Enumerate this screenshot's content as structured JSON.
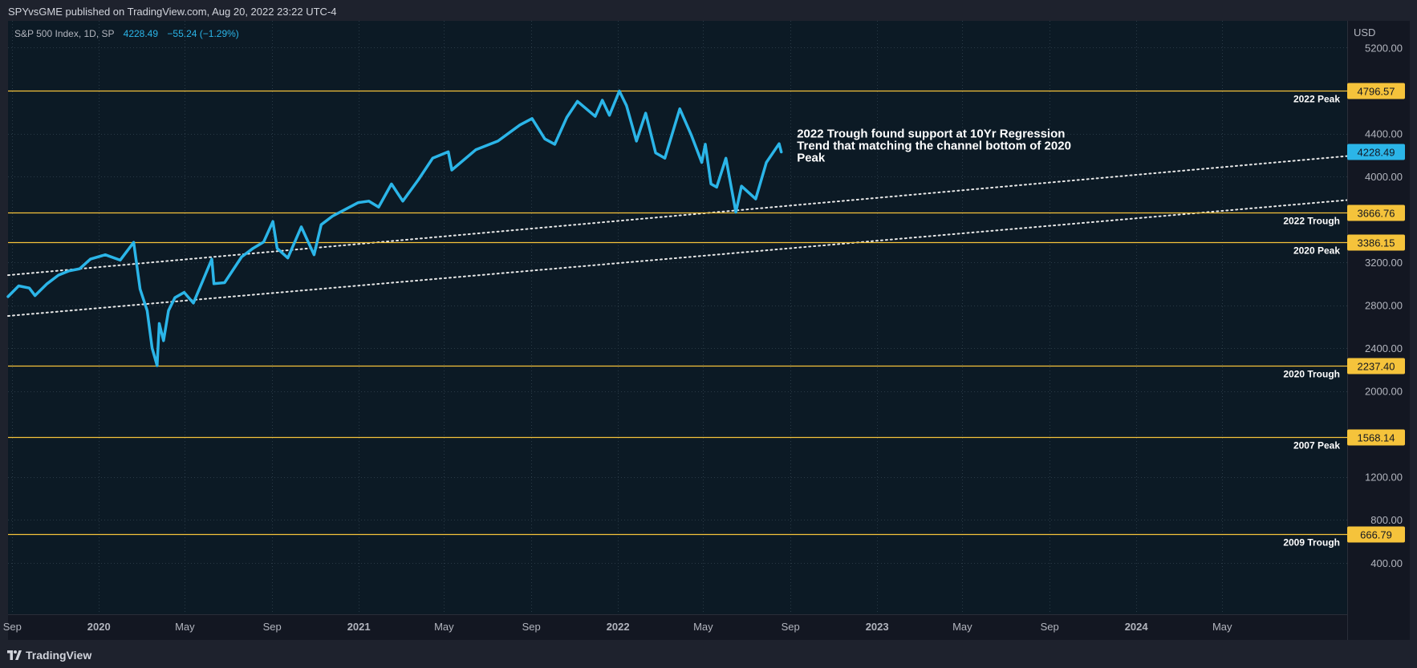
{
  "header": {
    "published_by": "SPYvsGME published on TradingView.com, Aug 20, 2022 23:22 UTC-4"
  },
  "footer": {
    "brand": "TradingView"
  },
  "colors": {
    "background": "#131722",
    "price_line": "#2bb5e8",
    "level_line": "#f5c33b",
    "text": "#d1d4dc",
    "axis_text": "#b2b5be"
  },
  "legend": {
    "symbol": "S&P 500 Index, 1D, SP",
    "price": "4228.49",
    "change": "−55.24 (−1.29%)"
  },
  "chart_data": {
    "type": "line",
    "currency": "USD",
    "y_ticks": [
      "5200.00",
      "4400.00",
      "4000.00",
      "3200.00",
      "2800.00",
      "2400.00",
      "2000.00",
      "1200.00",
      "800.00",
      "400.00"
    ],
    "y_tick_values": [
      5200,
      4400,
      4000,
      3200,
      2800,
      2400,
      2000,
      1200,
      800,
      400
    ],
    "ylim": [
      -80,
      5450
    ],
    "x_axis": {
      "labels": [
        "Sep",
        "2020",
        "May",
        "Sep",
        "2021",
        "May",
        "Sep",
        "2022",
        "May",
        "Sep",
        "2023",
        "May",
        "Sep",
        "2024",
        "May"
      ],
      "dates": [
        "2019-09-01",
        "2020-01-01",
        "2020-05-01",
        "2020-09-01",
        "2021-01-01",
        "2021-05-01",
        "2021-09-01",
        "2022-01-01",
        "2022-05-01",
        "2022-09-01",
        "2023-01-01",
        "2023-05-01",
        "2023-09-01",
        "2024-01-01",
        "2024-05-01"
      ],
      "bold": [
        false,
        true,
        false,
        false,
        true,
        false,
        false,
        true,
        false,
        false,
        true,
        false,
        false,
        true,
        false
      ]
    },
    "xlim": [
      "2019-08-26",
      "2024-10-24"
    ],
    "grid": true,
    "series": [
      {
        "points": [
          [
            "2019-08-26",
            2880
          ],
          [
            "2019-09-10",
            2980
          ],
          [
            "2019-09-25",
            2960
          ],
          [
            "2019-10-03",
            2890
          ],
          [
            "2019-10-20",
            3000
          ],
          [
            "2019-11-05",
            3080
          ],
          [
            "2019-11-20",
            3120
          ],
          [
            "2019-12-05",
            3140
          ],
          [
            "2019-12-20",
            3230
          ],
          [
            "2020-01-10",
            3270
          ],
          [
            "2020-01-31",
            3220
          ],
          [
            "2020-02-19",
            3386
          ],
          [
            "2020-02-28",
            2950
          ],
          [
            "2020-03-09",
            2750
          ],
          [
            "2020-03-16",
            2400
          ],
          [
            "2020-03-23",
            2237
          ],
          [
            "2020-03-26",
            2630
          ],
          [
            "2020-04-01",
            2470
          ],
          [
            "2020-04-08",
            2750
          ],
          [
            "2020-04-17",
            2870
          ],
          [
            "2020-04-30",
            2920
          ],
          [
            "2020-05-13",
            2820
          ],
          [
            "2020-05-27",
            3040
          ],
          [
            "2020-06-08",
            3230
          ],
          [
            "2020-06-11",
            3000
          ],
          [
            "2020-06-26",
            3010
          ],
          [
            "2020-07-20",
            3250
          ],
          [
            "2020-08-05",
            3330
          ],
          [
            "2020-08-20",
            3390
          ],
          [
            "2020-09-02",
            3580
          ],
          [
            "2020-09-08",
            3330
          ],
          [
            "2020-09-23",
            3240
          ],
          [
            "2020-10-12",
            3530
          ],
          [
            "2020-10-30",
            3270
          ],
          [
            "2020-11-09",
            3550
          ],
          [
            "2020-11-25",
            3630
          ],
          [
            "2020-12-15",
            3700
          ],
          [
            "2020-12-31",
            3756
          ],
          [
            "2021-01-15",
            3770
          ],
          [
            "2021-01-29",
            3715
          ],
          [
            "2021-02-16",
            3930
          ],
          [
            "2021-03-04",
            3770
          ],
          [
            "2021-03-26",
            3970
          ],
          [
            "2021-04-15",
            4170
          ],
          [
            "2021-05-07",
            4230
          ],
          [
            "2021-05-12",
            4060
          ],
          [
            "2021-06-15",
            4250
          ],
          [
            "2021-07-16",
            4330
          ],
          [
            "2021-08-16",
            4480
          ],
          [
            "2021-09-02",
            4540
          ],
          [
            "2021-09-20",
            4350
          ],
          [
            "2021-10-04",
            4300
          ],
          [
            "2021-10-21",
            4550
          ],
          [
            "2021-11-05",
            4700
          ],
          [
            "2021-11-30",
            4560
          ],
          [
            "2021-12-10",
            4710
          ],
          [
            "2021-12-20",
            4570
          ],
          [
            "2022-01-03",
            4796
          ],
          [
            "2022-01-13",
            4660
          ],
          [
            "2022-01-27",
            4330
          ],
          [
            "2022-02-09",
            4590
          ],
          [
            "2022-02-23",
            4220
          ],
          [
            "2022-03-08",
            4170
          ],
          [
            "2022-03-29",
            4630
          ],
          [
            "2022-04-14",
            4390
          ],
          [
            "2022-04-29",
            4130
          ],
          [
            "2022-05-04",
            4300
          ],
          [
            "2022-05-12",
            3930
          ],
          [
            "2022-05-20",
            3900
          ],
          [
            "2022-06-02",
            4170
          ],
          [
            "2022-06-16",
            3667
          ],
          [
            "2022-06-24",
            3910
          ],
          [
            "2022-07-14",
            3790
          ],
          [
            "2022-07-29",
            4130
          ],
          [
            "2022-08-16",
            4305
          ],
          [
            "2022-08-19",
            4228
          ]
        ]
      }
    ],
    "horizontal_levels": [
      {
        "label": "2022 Peak",
        "value": "4796.57"
      },
      {
        "label": "2022 Trough",
        "value": "3666.76"
      },
      {
        "label": "2020 Peak",
        "value": "3386.15"
      },
      {
        "label": "2020 Trough",
        "value": "2237.40"
      },
      {
        "label": "2007 Peak",
        "value": "1568.14"
      },
      {
        "label": "2009 Trough",
        "value": "666.79"
      }
    ],
    "trend_lines": [
      {
        "start": [
          "2019-08-26",
          3080
        ],
        "end": [
          "2024-10-24",
          4190
        ]
      },
      {
        "start": [
          "2019-08-26",
          2700
        ],
        "end": [
          "2024-10-24",
          3780
        ]
      }
    ],
    "annotation": {
      "lines": [
        "2022 Trough found support at 10Yr Regression",
        "Trend that matching the channel bottom of 2020",
        "Peak"
      ],
      "anchor": [
        "2022-09-01",
        4400
      ]
    },
    "last_price": "4228.49"
  }
}
